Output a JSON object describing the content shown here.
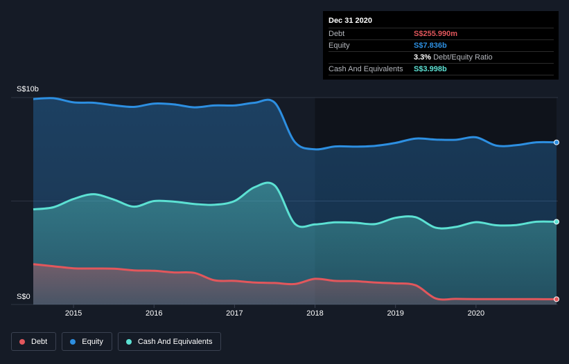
{
  "chart_data": {
    "type": "area",
    "y_axis": {
      "top_label": "S$10b",
      "bottom_label": "S$0",
      "ylim": [
        0,
        10
      ],
      "unit": "S$b"
    },
    "x_ticks": [
      "2015",
      "2016",
      "2017",
      "2018",
      "2019",
      "2020"
    ],
    "xlim": [
      2014.5,
      2021.0
    ],
    "series": [
      {
        "name": "Equity",
        "color": "#2d8fe1",
        "values": [
          [
            2014.5,
            9.93
          ],
          [
            2014.75,
            9.97
          ],
          [
            2015.0,
            9.77
          ],
          [
            2015.25,
            9.75
          ],
          [
            2015.5,
            9.63
          ],
          [
            2015.75,
            9.55
          ],
          [
            2016.0,
            9.71
          ],
          [
            2016.25,
            9.67
          ],
          [
            2016.5,
            9.53
          ],
          [
            2016.75,
            9.62
          ],
          [
            2017.0,
            9.62
          ],
          [
            2017.25,
            9.75
          ],
          [
            2017.5,
            9.75
          ],
          [
            2017.75,
            7.85
          ],
          [
            2018.0,
            7.5
          ],
          [
            2018.25,
            7.64
          ],
          [
            2018.5,
            7.63
          ],
          [
            2018.75,
            7.67
          ],
          [
            2019.0,
            7.81
          ],
          [
            2019.25,
            8.02
          ],
          [
            2019.5,
            7.97
          ],
          [
            2019.75,
            7.96
          ],
          [
            2020.0,
            8.08
          ],
          [
            2020.25,
            7.68
          ],
          [
            2020.5,
            7.7
          ],
          [
            2020.75,
            7.84
          ],
          [
            2021.0,
            7.836
          ]
        ]
      },
      {
        "name": "Cash And Equivalents",
        "color": "#5ce1d3",
        "values": [
          [
            2014.5,
            4.6
          ],
          [
            2014.75,
            4.7
          ],
          [
            2015.0,
            5.1
          ],
          [
            2015.25,
            5.33
          ],
          [
            2015.5,
            5.07
          ],
          [
            2015.75,
            4.73
          ],
          [
            2016.0,
            5.0
          ],
          [
            2016.25,
            4.97
          ],
          [
            2016.5,
            4.86
          ],
          [
            2016.75,
            4.82
          ],
          [
            2017.0,
            5.0
          ],
          [
            2017.25,
            5.67
          ],
          [
            2017.5,
            5.75
          ],
          [
            2017.75,
            3.9
          ],
          [
            2018.0,
            3.87
          ],
          [
            2018.25,
            3.97
          ],
          [
            2018.5,
            3.95
          ],
          [
            2018.75,
            3.89
          ],
          [
            2019.0,
            4.19
          ],
          [
            2019.25,
            4.22
          ],
          [
            2019.5,
            3.71
          ],
          [
            2019.75,
            3.75
          ],
          [
            2020.0,
            3.98
          ],
          [
            2020.25,
            3.83
          ],
          [
            2020.5,
            3.84
          ],
          [
            2020.75,
            4.0
          ],
          [
            2021.0,
            3.998
          ]
        ]
      },
      {
        "name": "Debt",
        "color": "#e2575c",
        "values": [
          [
            2014.5,
            1.95
          ],
          [
            2014.75,
            1.85
          ],
          [
            2015.0,
            1.75
          ],
          [
            2015.25,
            1.74
          ],
          [
            2015.5,
            1.73
          ],
          [
            2015.75,
            1.65
          ],
          [
            2016.0,
            1.63
          ],
          [
            2016.25,
            1.55
          ],
          [
            2016.5,
            1.53
          ],
          [
            2016.75,
            1.17
          ],
          [
            2017.0,
            1.14
          ],
          [
            2017.25,
            1.06
          ],
          [
            2017.5,
            1.04
          ],
          [
            2017.75,
            0.99
          ],
          [
            2018.0,
            1.24
          ],
          [
            2018.25,
            1.14
          ],
          [
            2018.5,
            1.13
          ],
          [
            2018.75,
            1.06
          ],
          [
            2019.0,
            1.02
          ],
          [
            2019.25,
            0.93
          ],
          [
            2019.5,
            0.29
          ],
          [
            2019.75,
            0.27
          ],
          [
            2020.0,
            0.26
          ],
          [
            2020.25,
            0.26
          ],
          [
            2020.5,
            0.26
          ],
          [
            2020.75,
            0.256
          ],
          [
            2021.0,
            0.256
          ]
        ]
      }
    ],
    "highlight_region_start": 2018.0
  },
  "tooltip": {
    "date": "Dec 31 2020",
    "debt_label": "Debt",
    "debt_value": "S$255.990m",
    "equity_label": "Equity",
    "equity_value": "S$7.836b",
    "ratio_value": "3.3%",
    "ratio_label": "Debt/Equity Ratio",
    "cash_label": "Cash And Equivalents",
    "cash_value": "S$3.998b",
    "colors": {
      "debt": "#e2575c",
      "equity": "#2d8fe1",
      "cash": "#5ce1d3"
    }
  },
  "legend": [
    {
      "label": "Debt",
      "color": "#e2575c"
    },
    {
      "label": "Equity",
      "color": "#2d8fe1"
    },
    {
      "label": "Cash And Equivalents",
      "color": "#5ce1d3"
    }
  ]
}
